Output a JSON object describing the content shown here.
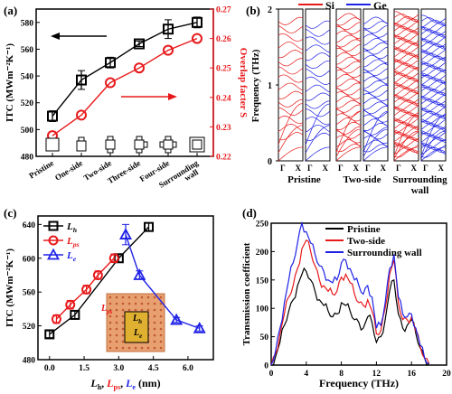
{
  "panels": {
    "a": {
      "label": "(a)"
    },
    "b": {
      "label": "(b)"
    },
    "c": {
      "label": "(c)"
    },
    "d": {
      "label": "(d)"
    }
  },
  "colors": {
    "black": "#000000",
    "red": "#e8191b",
    "blue": "#1f22e6",
    "orange": "#e8a070",
    "gold": "#e0b030"
  },
  "chart_data": [
    {
      "id": "a",
      "type": "line",
      "categories": [
        "Pristine",
        "One-side",
        "Two-side",
        "Three-side",
        "Four-side",
        "Surrounding wall"
      ],
      "ylabel": "ITC (MWm⁻²K⁻¹)",
      "ylabel_right": "Overlap facter S",
      "ylim": [
        480,
        590
      ],
      "ylim_right": [
        0.22,
        0.27
      ],
      "yticks": [
        480,
        500,
        520,
        540,
        560,
        580
      ],
      "yticks_right": [
        0.22,
        0.23,
        0.24,
        0.25,
        0.26,
        0.27
      ],
      "series": [
        {
          "values": [
            510,
            537,
            550,
            564,
            575,
            580
          ],
          "errors": [
            4,
            7,
            4,
            2,
            7,
            4
          ],
          "color": "#000000",
          "marker": "square",
          "axis": "left"
        },
        {
          "values": [
            0.227,
            0.234,
            0.245,
            0.25,
            0.256,
            0.26
          ],
          "color": "#e8191b",
          "marker": "circle",
          "axis": "right"
        }
      ]
    },
    {
      "id": "b",
      "type": "line",
      "ylabel": "Frequency (THz)",
      "ylim": [
        0,
        2
      ],
      "yticks": [
        0,
        1,
        2
      ],
      "legend": [
        {
          "name": "Si",
          "color": "#e8191b"
        },
        {
          "name": "Ge",
          "color": "#1f22e6"
        }
      ],
      "groups": [
        "Pristine",
        "Two-side",
        "Surrounding wall"
      ],
      "kpoint_labels": [
        "Γ",
        "X",
        "Γ",
        "X"
      ],
      "bands_per_panel": {
        "Pristine": 18,
        "Two-side": 34,
        "Surrounding wall": 60
      }
    },
    {
      "id": "c",
      "type": "line",
      "xlabel_parts": [
        "L",
        "h",
        ", ",
        "L",
        "ps",
        ", ",
        "L",
        "e",
        " (nm)"
      ],
      "ylabel": "ITC (MWm⁻²K⁻¹)",
      "xlim": [
        -0.5,
        7.1
      ],
      "ylim": [
        480,
        650
      ],
      "xticks": [
        0.0,
        1.5,
        3.0,
        4.5,
        6.0
      ],
      "yticks": [
        480,
        520,
        560,
        600,
        640
      ],
      "legend": [
        {
          "sym": "L",
          "sub": "h"
        },
        {
          "sym": "L",
          "sub": "ps"
        },
        {
          "sym": "L",
          "sub": "e"
        }
      ],
      "inset_labels": {
        "lps": "L",
        "lps_sub": "ps",
        "lh": "L",
        "lh_sub": "h",
        "le": "L",
        "le_sub": "e"
      },
      "series": [
        {
          "x": [
            0.0,
            1.1,
            3.0,
            4.3
          ],
          "y": [
            510,
            533,
            600,
            637
          ],
          "errors": [
            4,
            5,
            5,
            5
          ],
          "color": "#000000",
          "marker": "square"
        },
        {
          "x": [
            0.3,
            0.9,
            1.6,
            2.1,
            2.8
          ],
          "y": [
            528,
            545,
            563,
            580,
            600
          ],
          "errors": [
            5,
            5,
            5,
            5,
            5
          ],
          "color": "#e8191b",
          "marker": "circle"
        },
        {
          "x": [
            3.3,
            3.9,
            5.5,
            6.5
          ],
          "y": [
            628,
            580,
            527,
            517
          ],
          "errors": [
            12,
            5,
            3,
            3
          ],
          "color": "#1f22e6",
          "marker": "triangle"
        }
      ]
    },
    {
      "id": "d",
      "type": "line",
      "xlabel": "Frequency (THz)",
      "ylabel": "Transmission coefficient",
      "xlim": [
        0,
        20
      ],
      "ylim": [
        0,
        250
      ],
      "xticks": [
        0,
        4,
        8,
        12,
        16,
        20
      ],
      "yticks": [
        0,
        50,
        100,
        150,
        200,
        250
      ],
      "x": [
        0,
        0.5,
        1,
        1.5,
        2,
        2.5,
        3,
        3.5,
        4,
        4.5,
        5,
        5.5,
        6,
        6.5,
        7,
        7.5,
        8,
        8.5,
        9,
        9.5,
        10,
        10.5,
        11,
        11.5,
        12,
        12.5,
        13,
        13.5,
        14,
        14.5,
        15,
        15.5,
        16,
        16.5,
        17,
        17.5,
        18
      ],
      "series": [
        {
          "name": "Pristine",
          "color": "#000000",
          "values": [
            0,
            15,
            40,
            70,
            95,
            115,
            140,
            160,
            165,
            150,
            130,
            115,
            105,
            95,
            85,
            90,
            110,
            105,
            95,
            80,
            75,
            65,
            85,
            75,
            40,
            50,
            80,
            130,
            150,
            90,
            65,
            70,
            80,
            55,
            30,
            12,
            3
          ]
        },
        {
          "name": "Two-side",
          "color": "#e8191b",
          "values": [
            0,
            20,
            55,
            90,
            120,
            140,
            170,
            205,
            220,
            200,
            175,
            150,
            140,
            130,
            125,
            130,
            155,
            160,
            145,
            125,
            110,
            105,
            115,
            95,
            55,
            60,
            100,
            160,
            185,
            110,
            80,
            80,
            85,
            60,
            32,
            12,
            3
          ]
        },
        {
          "name": "Surrounding wall",
          "color": "#1f22e6",
          "values": [
            0,
            25,
            65,
            110,
            150,
            180,
            215,
            250,
            235,
            215,
            195,
            175,
            165,
            150,
            145,
            150,
            180,
            185,
            170,
            150,
            140,
            125,
            140,
            120,
            65,
            70,
            110,
            170,
            195,
            120,
            90,
            85,
            90,
            65,
            35,
            12,
            3
          ]
        }
      ]
    }
  ]
}
